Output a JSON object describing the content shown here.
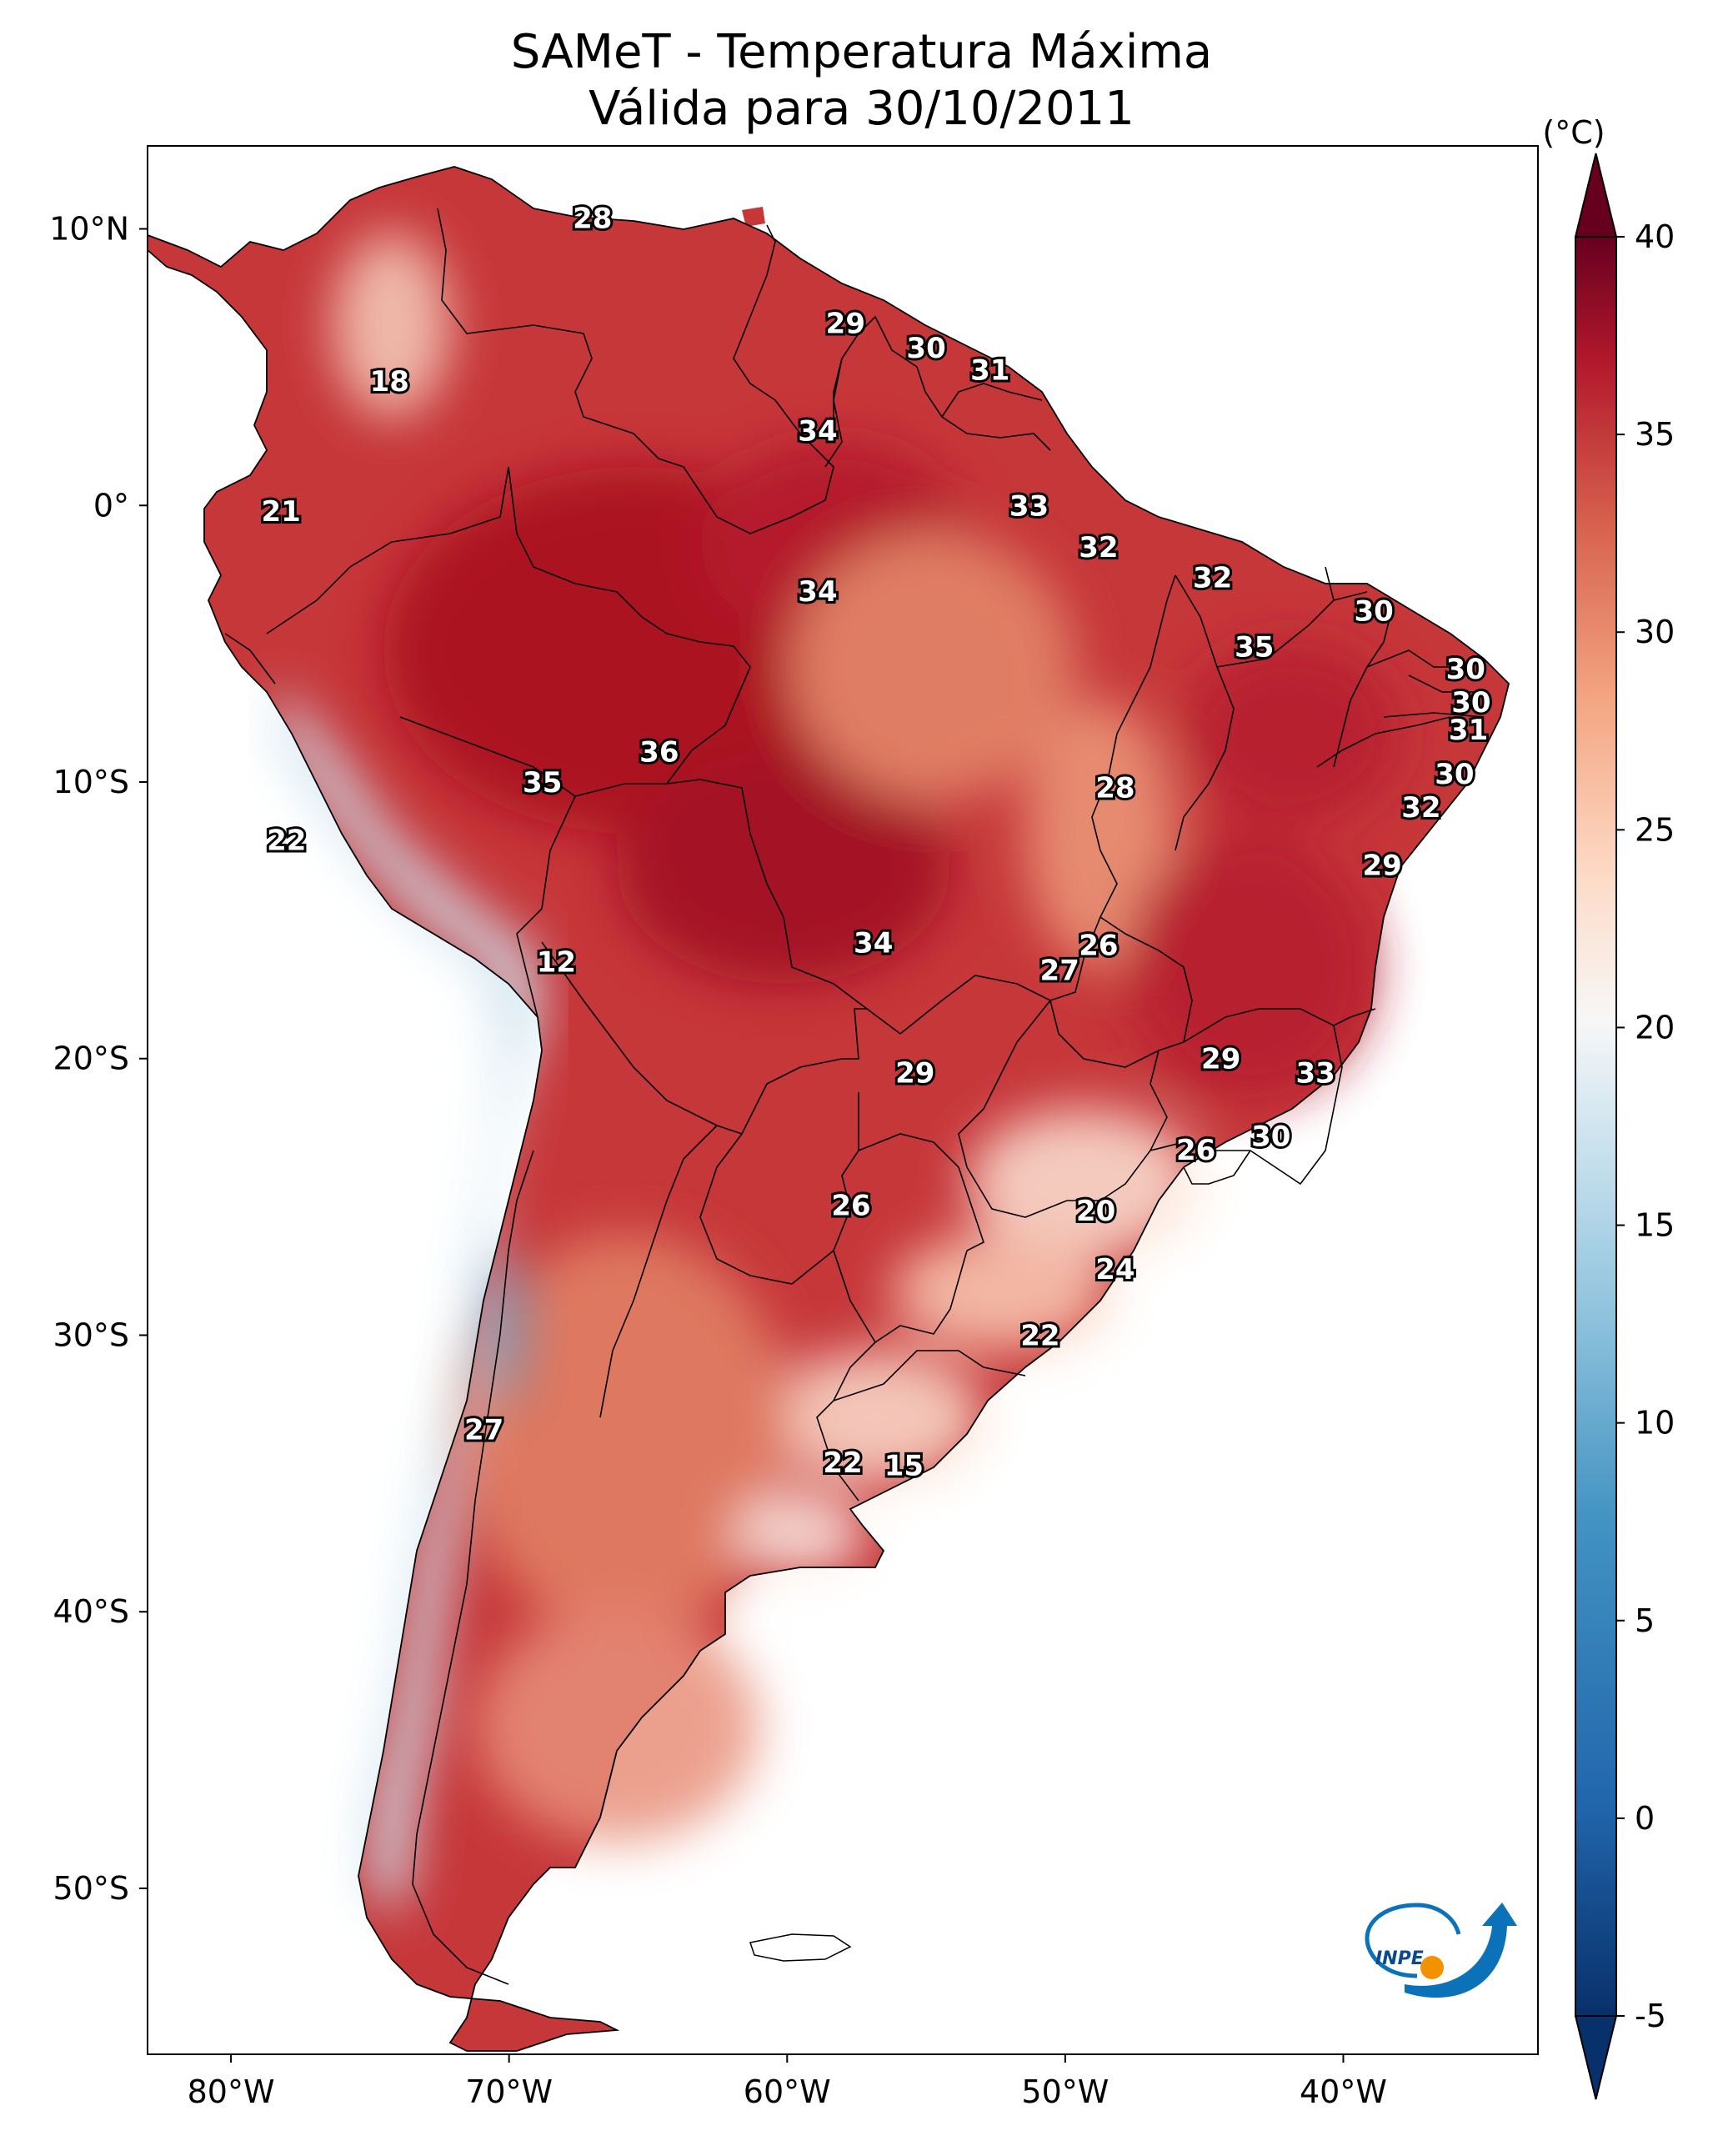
{
  "title": {
    "line1": "SAMeT - Temperatura Máxima",
    "line2": "Válida para 30/10/2011"
  },
  "map": {
    "lon_range": [
      -83,
      -33
    ],
    "lat_range": [
      -56,
      13
    ],
    "x_ticks": [
      {
        "value": -80,
        "label": "80°W"
      },
      {
        "value": -70,
        "label": "70°W"
      },
      {
        "value": -60,
        "label": "60°W"
      },
      {
        "value": -50,
        "label": "50°W"
      },
      {
        "value": -40,
        "label": "40°W"
      }
    ],
    "y_ticks": [
      {
        "value": 10,
        "label": "10°N"
      },
      {
        "value": 0,
        "label": "0°"
      },
      {
        "value": -10,
        "label": "10°S"
      },
      {
        "value": -20,
        "label": "20°S"
      },
      {
        "value": -30,
        "label": "30°S"
      },
      {
        "value": -40,
        "label": "40°S"
      },
      {
        "value": -50,
        "label": "50°S"
      }
    ],
    "station_labels": [
      {
        "lon": -67.0,
        "lat": 10.4,
        "value": "28"
      },
      {
        "lon": -57.9,
        "lat": 6.6,
        "value": "29"
      },
      {
        "lon": -55.0,
        "lat": 5.7,
        "value": "30"
      },
      {
        "lon": -52.7,
        "lat": 4.9,
        "value": "31"
      },
      {
        "lon": -74.3,
        "lat": 4.5,
        "value": "18"
      },
      {
        "lon": -58.9,
        "lat": 2.7,
        "value": "34"
      },
      {
        "lon": -51.3,
        "lat": 0.0,
        "value": "33"
      },
      {
        "lon": -78.2,
        "lat": -0.2,
        "value": "21"
      },
      {
        "lon": -48.8,
        "lat": -1.5,
        "value": "32"
      },
      {
        "lon": -44.7,
        "lat": -2.6,
        "value": "32"
      },
      {
        "lon": -58.9,
        "lat": -3.1,
        "value": "34"
      },
      {
        "lon": -38.9,
        "lat": -3.8,
        "value": "30"
      },
      {
        "lon": -43.2,
        "lat": -5.1,
        "value": "35"
      },
      {
        "lon": -35.6,
        "lat": -5.9,
        "value": "30"
      },
      {
        "lon": -35.4,
        "lat": -7.1,
        "value": "30"
      },
      {
        "lon": -35.5,
        "lat": -8.1,
        "value": "31"
      },
      {
        "lon": -36.0,
        "lat": -9.7,
        "value": "30"
      },
      {
        "lon": -64.6,
        "lat": -8.9,
        "value": "36"
      },
      {
        "lon": -68.8,
        "lat": -10.0,
        "value": "35"
      },
      {
        "lon": -48.2,
        "lat": -10.2,
        "value": "28"
      },
      {
        "lon": -37.2,
        "lat": -10.9,
        "value": "32"
      },
      {
        "lon": -78.0,
        "lat": -12.1,
        "value": "22"
      },
      {
        "lon": -38.6,
        "lat": -13.0,
        "value": "29"
      },
      {
        "lon": -48.8,
        "lat": -15.9,
        "value": "26"
      },
      {
        "lon": -56.9,
        "lat": -15.8,
        "value": "34"
      },
      {
        "lon": -50.2,
        "lat": -16.8,
        "value": "27"
      },
      {
        "lon": -68.3,
        "lat": -16.5,
        "value": "12"
      },
      {
        "lon": -44.4,
        "lat": -20.0,
        "value": "29"
      },
      {
        "lon": -55.4,
        "lat": -20.5,
        "value": "29"
      },
      {
        "lon": -41.0,
        "lat": -20.5,
        "value": "33"
      },
      {
        "lon": -42.6,
        "lat": -22.8,
        "value": "30"
      },
      {
        "lon": -45.3,
        "lat": -23.3,
        "value": "26"
      },
      {
        "lon": -48.9,
        "lat": -25.5,
        "value": "20"
      },
      {
        "lon": -57.7,
        "lat": -25.3,
        "value": "26"
      },
      {
        "lon": -48.2,
        "lat": -27.6,
        "value": "24"
      },
      {
        "lon": -50.9,
        "lat": -30.0,
        "value": "22"
      },
      {
        "lon": -70.9,
        "lat": -33.4,
        "value": "27"
      },
      {
        "lon": -58.0,
        "lat": -34.6,
        "value": "22"
      },
      {
        "lon": -55.8,
        "lat": -34.7,
        "value": "15"
      }
    ]
  },
  "colorbar": {
    "unit": "(°C)",
    "range": [
      -5,
      40
    ],
    "ticks": [
      {
        "value": 40,
        "label": "40"
      },
      {
        "value": 35,
        "label": "35"
      },
      {
        "value": 30,
        "label": "30"
      },
      {
        "value": 25,
        "label": "25"
      },
      {
        "value": 20,
        "label": "20"
      },
      {
        "value": 15,
        "label": "15"
      },
      {
        "value": 10,
        "label": "10"
      },
      {
        "value": 5,
        "label": "5"
      },
      {
        "value": 0,
        "label": "0"
      },
      {
        "value": -5,
        "label": "-5"
      }
    ]
  },
  "logo": {
    "text": "INPE"
  }
}
